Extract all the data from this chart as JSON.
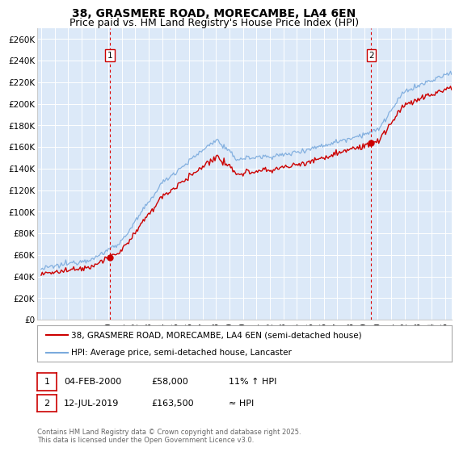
{
  "title_line1": "38, GRASMERE ROAD, MORECAMBE, LA4 6EN",
  "title_line2": "Price paid vs. HM Land Registry's House Price Index (HPI)",
  "ylabel_ticks": [
    "£0",
    "£20K",
    "£40K",
    "£60K",
    "£80K",
    "£100K",
    "£120K",
    "£140K",
    "£160K",
    "£180K",
    "£200K",
    "£220K",
    "£240K",
    "£260K"
  ],
  "ytick_vals": [
    0,
    20000,
    40000,
    60000,
    80000,
    100000,
    120000,
    140000,
    160000,
    180000,
    200000,
    220000,
    240000,
    260000
  ],
  "ylim": [
    0,
    270000
  ],
  "xlim_start": 1994.7,
  "xlim_end": 2025.5,
  "xticks": [
    1995,
    1996,
    1997,
    1998,
    1999,
    2000,
    2001,
    2002,
    2003,
    2004,
    2005,
    2006,
    2007,
    2008,
    2009,
    2010,
    2011,
    2012,
    2013,
    2014,
    2015,
    2016,
    2017,
    2018,
    2019,
    2020,
    2021,
    2022,
    2023,
    2024,
    2025
  ],
  "bg_color": "#dce9f8",
  "grid_color": "#ffffff",
  "sale1_x": 2000.09,
  "sale1_y": 58000,
  "sale1_label": "1",
  "sale2_x": 2019.53,
  "sale2_y": 163500,
  "sale2_label": "2",
  "red_line_color": "#cc0000",
  "blue_line_color": "#7aaadd",
  "vline_color": "#dd0000",
  "legend_line1": "38, GRASMERE ROAD, MORECAMBE, LA4 6EN (semi-detached house)",
  "legend_line2": "HPI: Average price, semi-detached house, Lancaster",
  "annotation1_box": "04-FEB-2000",
  "annotation1_price": "£58,000",
  "annotation1_hpi": "11% ↑ HPI",
  "annotation2_box": "12-JUL-2019",
  "annotation2_price": "£163,500",
  "annotation2_hpi": "≈ HPI",
  "footnote": "Contains HM Land Registry data © Crown copyright and database right 2025.\nThis data is licensed under the Open Government Licence v3.0.",
  "title_fontsize": 10,
  "subtitle_fontsize": 9
}
